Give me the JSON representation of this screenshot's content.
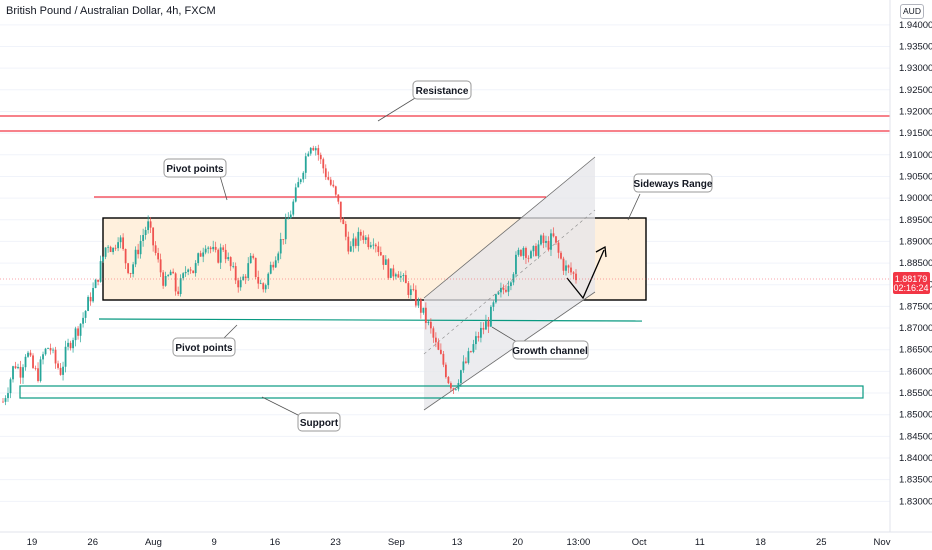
{
  "header": {
    "title": "British Pound / Australian Dollar, 4h, FXCM",
    "currency_badge": "AUD"
  },
  "price_label": {
    "price": "1.88179",
    "countdown": "02:16:24",
    "color": "#f23645"
  },
  "annotations": {
    "resistance": "Resistance",
    "pivot_top": "Pivot points",
    "pivot_bottom": "Pivot points",
    "sideways": "Sideways Range",
    "growth": "Growth channel",
    "support": "Support"
  },
  "colors": {
    "up": "#26a69a",
    "down": "#ef5350",
    "resistance_line": "#f23645",
    "support_line": "#089981",
    "range_fill": "#fff0dd",
    "channel_fill": "#e8e8ea"
  },
  "chart_data": {
    "type": "candlestick",
    "title": "British Pound / Australian Dollar, 4h, FXCM",
    "ylim": [
      1.828,
      1.9425
    ],
    "y_ticks": [
      "1.94000",
      "1.93500",
      "1.93000",
      "1.92500",
      "1.92000",
      "1.91500",
      "1.91000",
      "1.90500",
      "1.90000",
      "1.89500",
      "1.89000",
      "1.88500",
      "1.88000",
      "1.87500",
      "1.87000",
      "1.86500",
      "1.86000",
      "1.85500",
      "1.85000",
      "1.84500",
      "1.84000",
      "1.83500",
      "1.83000"
    ],
    "x_ticks": [
      "19",
      "26",
      "Aug",
      "9",
      "16",
      "23",
      "Sep",
      "13",
      "20",
      "13:00",
      "Oct",
      "11",
      "18",
      "25",
      "Nov"
    ],
    "last_price": 1.88179,
    "resistance_levels": [
      1.9185,
      1.9145
    ],
    "pivot_levels": [
      1.9003,
      1.8728
    ],
    "support_zone": [
      1.8553,
      1.8578
    ],
    "sideways_range": [
      1.8765,
      1.8955
    ],
    "growth_channel": {
      "lower_start": 1.8535,
      "lower_end": 1.8835,
      "upper_start": 1.8775,
      "upper_end": 1.9095
    },
    "price_path": [
      1.853,
      1.857,
      1.862,
      1.86,
      1.865,
      1.861,
      1.859,
      1.864,
      1.866,
      1.862,
      1.86,
      1.865,
      1.868,
      1.87,
      1.873,
      1.877,
      1.88,
      1.885,
      1.89,
      1.888,
      1.892,
      1.886,
      1.883,
      1.887,
      1.891,
      1.894,
      1.889,
      1.884,
      1.88,
      1.883,
      1.878,
      1.881,
      1.885,
      1.883,
      1.887,
      1.89,
      1.888,
      1.886,
      1.889,
      1.885,
      1.882,
      1.88,
      1.883,
      1.886,
      1.881,
      1.879,
      1.883,
      1.887,
      1.89,
      1.894,
      1.898,
      1.903,
      1.908,
      1.913,
      1.912,
      1.908,
      1.905,
      1.902,
      1.898,
      1.892,
      1.888,
      1.89,
      1.892,
      1.89,
      1.891,
      1.888,
      1.885,
      1.882,
      1.884,
      1.881,
      1.879,
      1.877,
      1.875,
      1.872,
      1.869,
      1.865,
      1.862,
      1.858,
      1.856,
      1.86,
      1.862,
      1.865,
      1.868,
      1.87,
      1.872,
      1.876,
      1.878,
      1.88,
      1.883,
      1.887,
      1.889,
      1.886,
      1.888,
      1.89,
      1.889,
      1.891,
      1.887,
      1.884,
      1.883,
      1.8818
    ]
  }
}
